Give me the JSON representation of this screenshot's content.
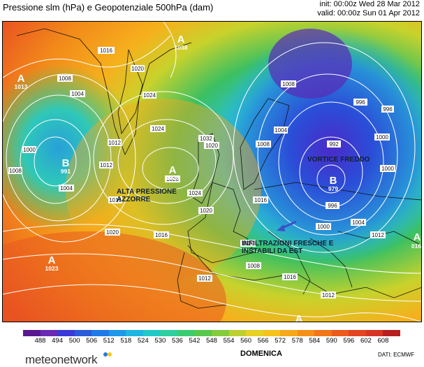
{
  "header": {
    "title": "Pressione slm (hPa) e Geopotenziale 500hPa (dam)",
    "init": "init: 00:00z Wed 28 Mar 2012",
    "valid": "valid: 00:00z Sun 01 Apr 2012"
  },
  "map": {
    "annotations": {
      "alta_pressione": "ALTA PRESSIONE\nAZZORRE",
      "vortice": "VORTICE FREDDO",
      "infiltrazioni": "INFILTRAZIONI FRESCHE E\nINSTABILI DA EST"
    },
    "centres": [
      {
        "letter": "A",
        "value": "1013"
      },
      {
        "letter": "A",
        "value": "1038"
      },
      {
        "letter": "B",
        "value": "991"
      },
      {
        "letter": "A",
        "value": "1028"
      },
      {
        "letter": "B",
        "value": "979"
      },
      {
        "letter": "A",
        "value": "1023"
      },
      {
        "letter": "A",
        "value": ""
      },
      {
        "letter": "A",
        "value": "016"
      }
    ],
    "isobar_labels": [
      "1016",
      "1020",
      "1024",
      "1004",
      "1008",
      "1012",
      "1000",
      "1004",
      "1008",
      "1012",
      "1016",
      "1020",
      "1024",
      "1028",
      "1032",
      "1024",
      "1020",
      "1016",
      "1012",
      "1008",
      "1004",
      "1000",
      "996",
      "992",
      "996",
      "1000",
      "1004",
      "1008",
      "1012",
      "1016",
      "1020",
      "1020",
      "1016",
      "1012",
      "1008",
      "996",
      "1000"
    ],
    "colors": {
      "purple": "#7a3fb0",
      "blue": "#2a5bd8",
      "cyan": "#28c8d0",
      "green": "#3cc060",
      "yellow": "#f2c81c",
      "orange": "#f59a1c",
      "red": "#ec5a20"
    }
  },
  "scale": {
    "values": [
      "488",
      "494",
      "500",
      "506",
      "512",
      "518",
      "524",
      "530",
      "536",
      "542",
      "548",
      "554",
      "560",
      "566",
      "572",
      "578",
      "584",
      "590",
      "596",
      "602",
      "608"
    ],
    "colors": [
      "#5a1890",
      "#6a2ab4",
      "#3a3ad8",
      "#2a5bd8",
      "#1e7ae8",
      "#1e98e8",
      "#1eb6e0",
      "#22c8c8",
      "#2ed0a0",
      "#3ccc70",
      "#58c84c",
      "#84cc3c",
      "#bcd030",
      "#e8d024",
      "#f6c21c",
      "#f6a81a",
      "#f49018",
      "#f07618",
      "#ec5a1c",
      "#e44420",
      "#d83424",
      "#b82020"
    ]
  },
  "footer": {
    "brand": "meteonetwork",
    "day": "DOMENICA",
    "source": "DATI: ECMWF"
  }
}
